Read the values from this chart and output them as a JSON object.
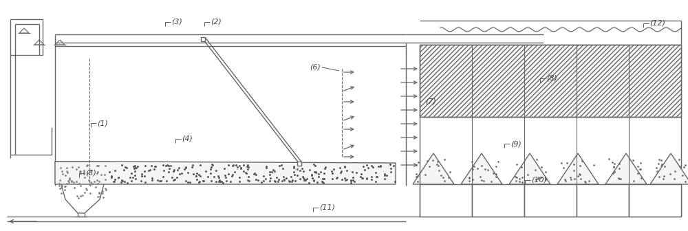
{
  "bg_color": "#ffffff",
  "lc": "#666666",
  "lw": 1.0,
  "fig_width": 10.0,
  "fig_height": 3.36,
  "dpi": 100
}
